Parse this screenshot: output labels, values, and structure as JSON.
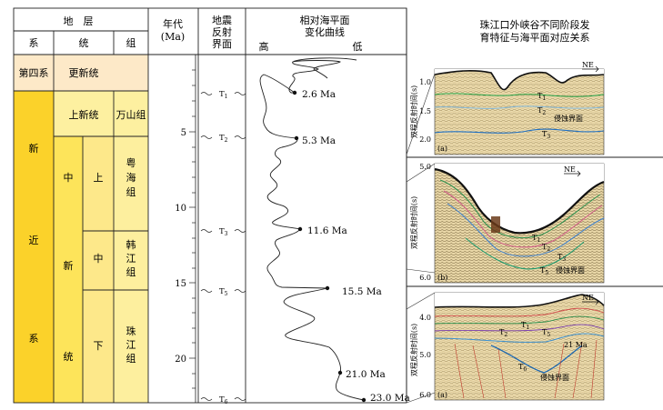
{
  "header": {
    "strata": "地　层",
    "system": "系",
    "series": "统",
    "group": "组",
    "age_line1": "年代",
    "age_line2": "(Ma)",
    "reflector_lines": [
      "地震",
      "反射",
      "界面"
    ],
    "curve_lines": [
      "相对海平面",
      "变化曲线"
    ],
    "curve_high": "高",
    "curve_low": "低",
    "right_lines": [
      "珠江口外峡谷不同阶段发",
      "育特征与海平面对应关系"
    ]
  },
  "strat_column": {
    "quaternary": "第四系",
    "pleistocene": "更新统",
    "pliocene": "上新统",
    "wanshan": "万山组",
    "neogene_chars": [
      "新",
      "近",
      "系"
    ],
    "miocene_chars": [
      "中",
      "新",
      "统"
    ],
    "upper": "上",
    "middle": "中",
    "lower": "下",
    "yuehai_chars": [
      "粤",
      "海",
      "组"
    ],
    "hanjiang_chars": [
      "韩",
      "江",
      "组"
    ],
    "zhujiang_chars": [
      "珠",
      "江",
      "组"
    ]
  },
  "age_ticks": [
    "5",
    "10",
    "15",
    "20"
  ],
  "reflectors": [
    {
      "name": "T",
      "sub": "1"
    },
    {
      "name": "T",
      "sub": "2"
    },
    {
      "name": "T",
      "sub": "3"
    },
    {
      "name": "T",
      "sub": "5"
    },
    {
      "name": "T",
      "sub": "6"
    }
  ],
  "sea_level_events": [
    "2.6 Ma",
    "5.3 Ma",
    "11.6 Ma",
    "15.5 Ma",
    "21.0 Ma",
    "23.0 Ma"
  ],
  "seismic_panels": [
    {
      "tag": "(a)",
      "ylabel": "双程反射时间(s)",
      "ticks": [
        "1.0",
        "1.5",
        "2.0"
      ],
      "direction": "NE",
      "labels": [
        {
          "t": "T",
          "s": "1"
        },
        {
          "t": "T",
          "s": "2"
        },
        {
          "t": "T",
          "s": "3"
        }
      ],
      "note": "侵蚀界面"
    },
    {
      "tag": "(b)",
      "ylabel": "双程反射时间(s)",
      "ticks": [
        "5.0",
        "6.0"
      ],
      "direction": "NE",
      "labels": [
        {
          "t": "T",
          "s": "1"
        },
        {
          "t": "T",
          "s": "2"
        },
        {
          "t": "T",
          "s": "3"
        },
        {
          "t": "T",
          "s": "5"
        }
      ],
      "note": "侵蚀界面"
    },
    {
      "tag": "(a)",
      "ylabel": "双程反射时间(s)",
      "ticks": [
        "4.0",
        "5.0",
        "6.0"
      ],
      "direction": "NE",
      "labels": [
        {
          "t": "T",
          "s": "1"
        },
        {
          "t": "T",
          "s": "2"
        },
        {
          "t": "T",
          "s": "5"
        },
        {
          "t": "T",
          "s": "6"
        }
      ],
      "age_note": "21 Ma",
      "note": "侵蚀界面"
    }
  ],
  "colors": {
    "quaternary": "#fde9c8",
    "pliocene": "#fdf0a0",
    "neogene": "#fbd22a",
    "miocene": "#fde45a",
    "stage": "#fde88a",
    "formation": "#fdef9e",
    "seismic_bg": "#e8d6a6",
    "line": "#222222"
  }
}
